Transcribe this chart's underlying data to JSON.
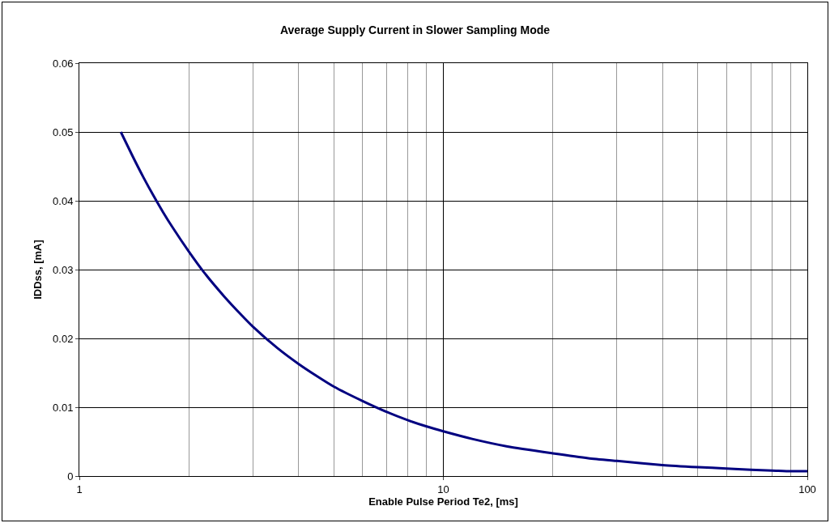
{
  "chart_data": {
    "type": "line",
    "title": "Average Supply Current in Slower Sampling Mode",
    "xlabel": "Enable Pulse Period Te2, [ms]",
    "ylabel": "IDDss, [mA]",
    "x": [
      1.3,
      1.4,
      1.5,
      1.6,
      1.7,
      1.8,
      2,
      2.2,
      2.5,
      2.8,
      3,
      3.5,
      4,
      4.5,
      5,
      6,
      7,
      8,
      9,
      10,
      12,
      15,
      20,
      25,
      30,
      40,
      50,
      60,
      70,
      80,
      90,
      100
    ],
    "series": [
      {
        "color": "#000080",
        "values": [
          0.05,
          0.0465,
          0.0434,
          0.0407,
          0.0383,
          0.0362,
          0.0326,
          0.0296,
          0.0261,
          0.0233,
          0.0217,
          0.0186,
          0.0163,
          0.0145,
          0.013,
          0.0109,
          0.0093,
          0.0081,
          0.0072,
          0.0065,
          0.0054,
          0.0043,
          0.0033,
          0.0026,
          0.0022,
          0.0016,
          0.0013,
          0.0011,
          0.0009,
          0.0008,
          0.0007,
          0.0007
        ]
      }
    ],
    "xlim": [
      1,
      100
    ],
    "xticks": [
      1,
      10,
      100
    ],
    "ylim": [
      0,
      0.06
    ],
    "yticks": [
      0,
      0.01,
      0.02,
      0.03,
      0.04,
      0.05,
      0.06
    ],
    "log": "x",
    "grid": true,
    "marker": "none",
    "line_style": "solid"
  }
}
